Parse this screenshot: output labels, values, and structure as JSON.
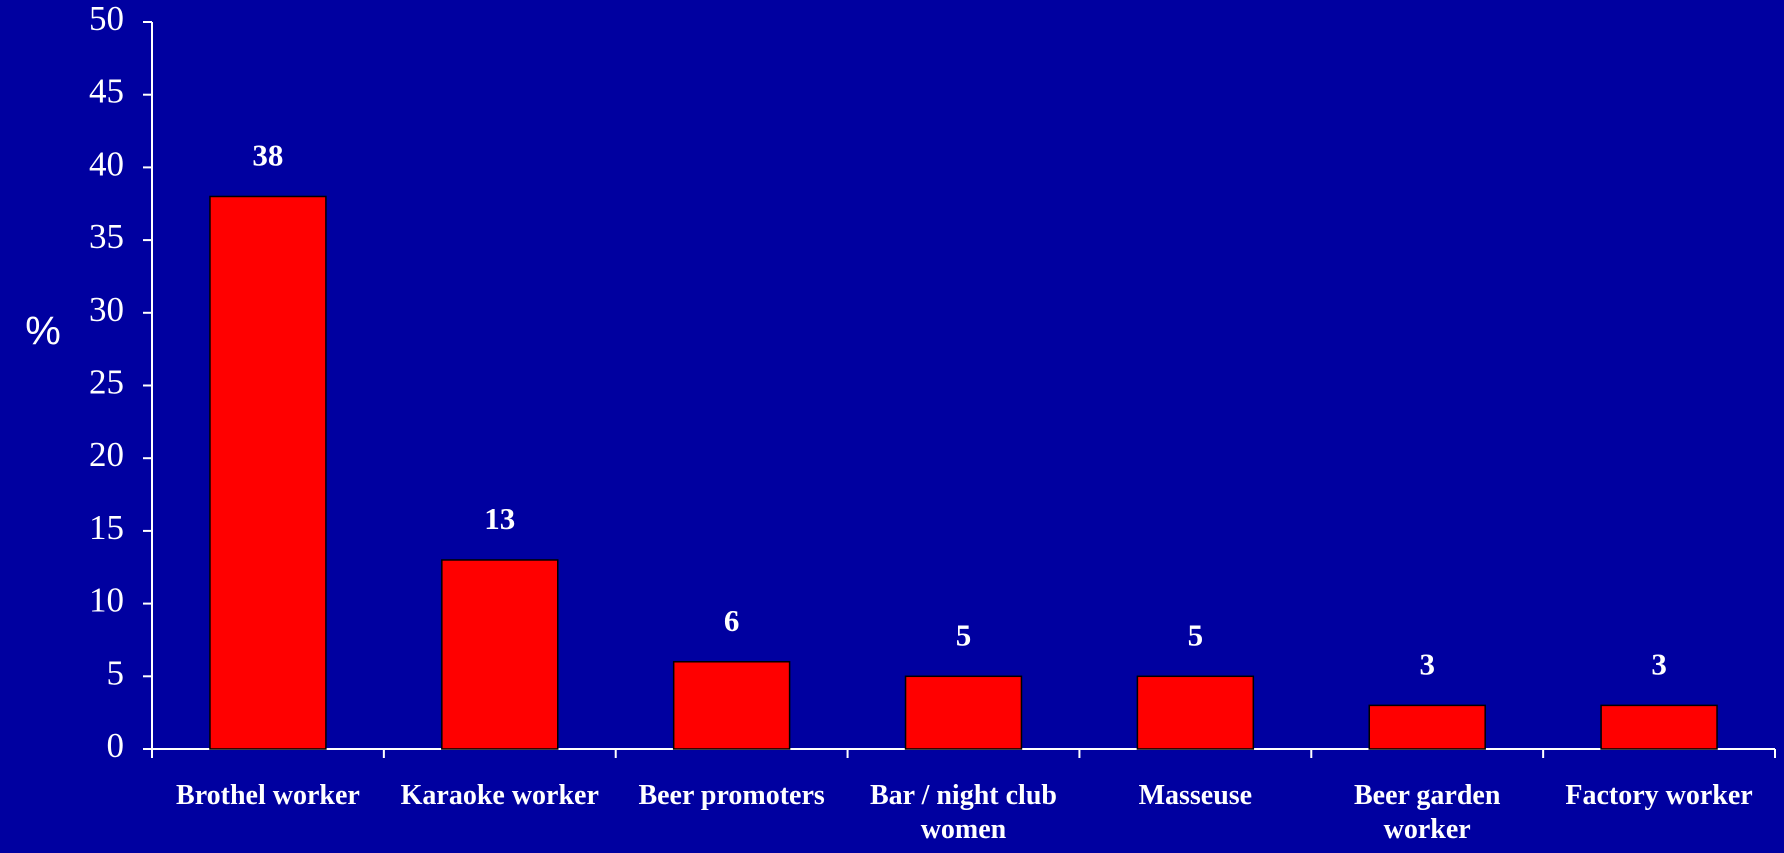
{
  "chart_data": {
    "type": "bar",
    "ylabel": "%",
    "categories": [
      "Brothel worker",
      "Karaoke worker",
      "Beer promoters",
      "Bar / night club women",
      "Masseuse",
      "Beer garden worker",
      "Factory worker"
    ],
    "values": [
      38,
      13,
      6,
      5,
      5,
      3,
      3
    ],
    "color": "#ff0000",
    "ylim": [
      0,
      50
    ],
    "yticks": [
      0,
      5,
      10,
      15,
      20,
      25,
      30,
      35,
      40,
      45,
      50
    ],
    "grid": false
  }
}
